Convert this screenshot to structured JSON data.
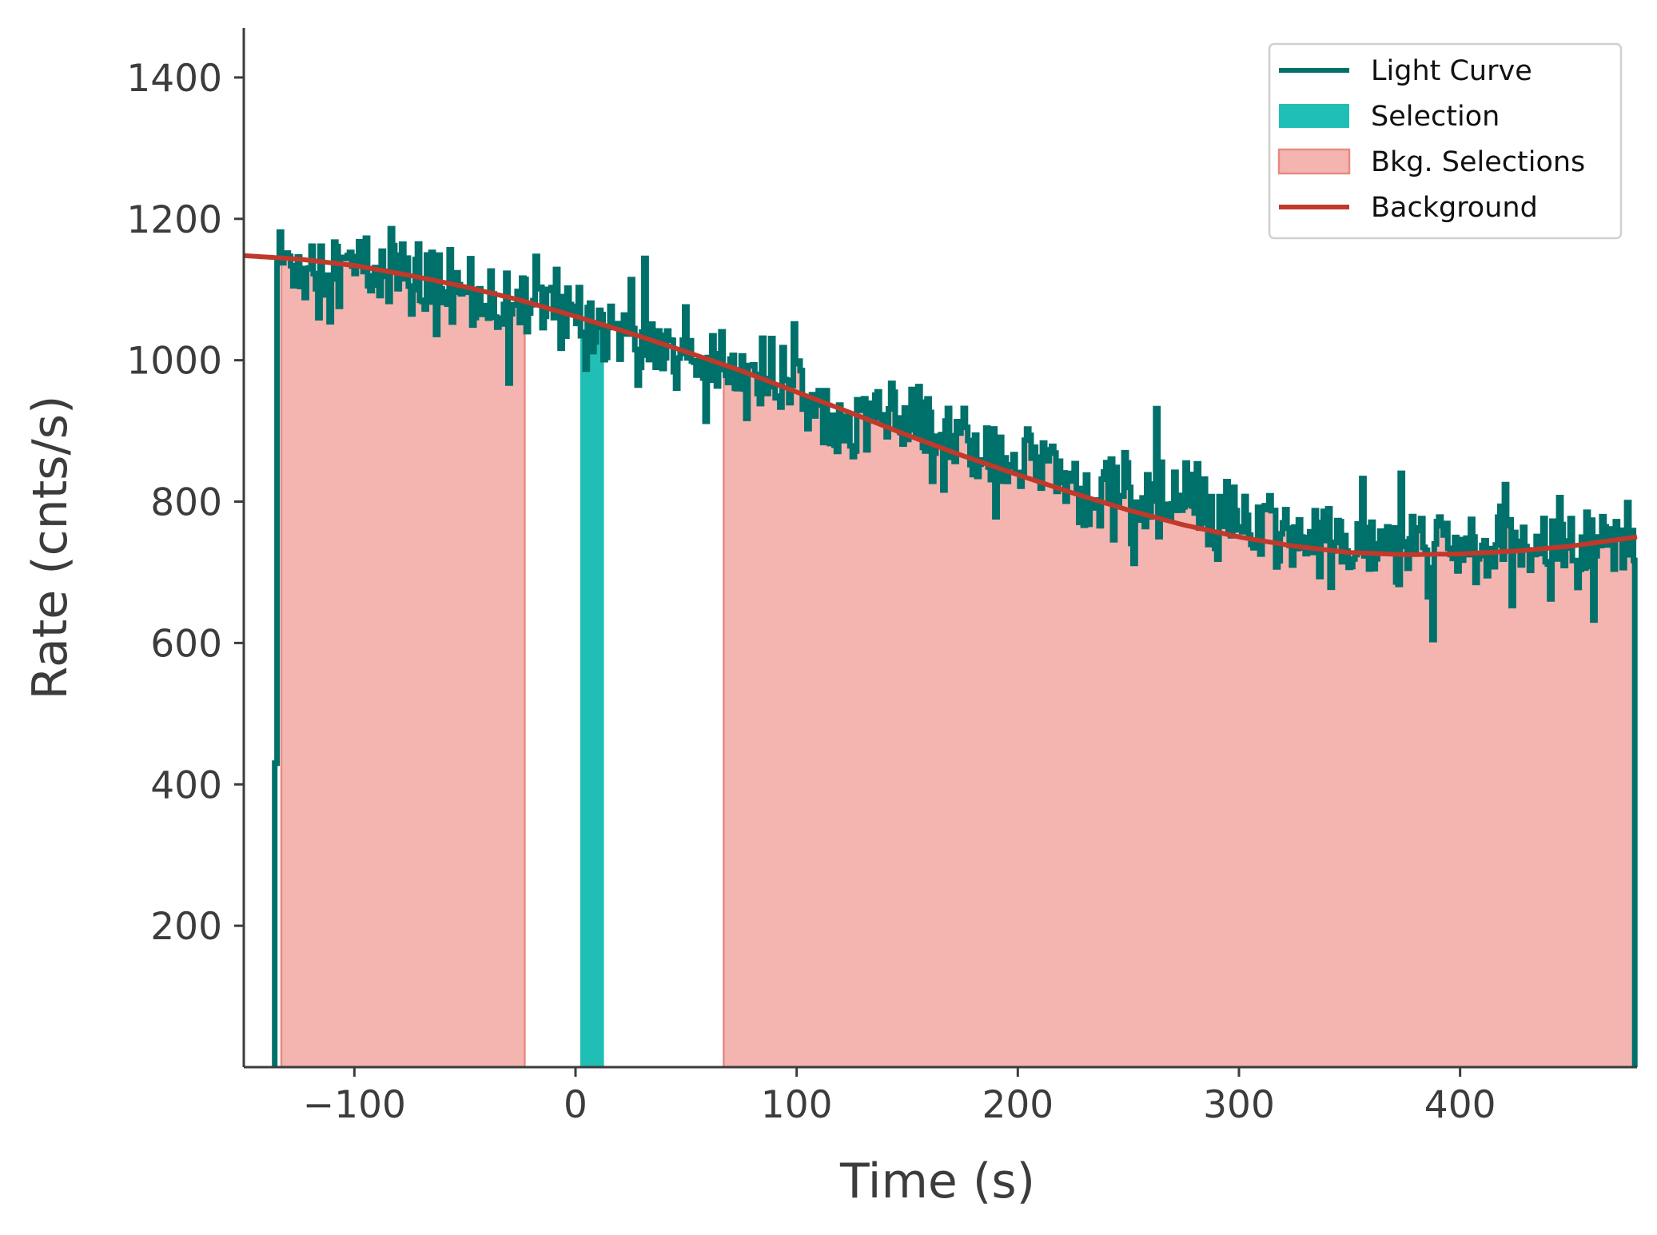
{
  "chart_data": {
    "type": "line",
    "title": "",
    "xlabel": "Time (s)",
    "ylabel": "Rate (cnts/s)",
    "xlim": [
      -150,
      480
    ],
    "ylim": [
      0,
      1470
    ],
    "x_ticks": [
      -100,
      0,
      100,
      200,
      300,
      400
    ],
    "x_tick_labels": [
      "−100",
      "0",
      "100",
      "200",
      "300",
      "400"
    ],
    "y_ticks": [
      200,
      400,
      600,
      800,
      1000,
      1200,
      1400
    ],
    "y_tick_labels": [
      "200",
      "400",
      "600",
      "800",
      "1000",
      "1200",
      "1400"
    ],
    "grid": false,
    "legend_position": "top-right",
    "series": [
      {
        "name": "Light Curve",
        "kind": "step",
        "color": "#00706a",
        "bin_width_s": 1.024,
        "start_s": -136,
        "end_s": 479,
        "start_value": 430,
        "mean_trend": {
          "x": [
            -136,
            -100,
            -50,
            0,
            50,
            100,
            150,
            200,
            250,
            300,
            350,
            400,
            450,
            479
          ],
          "y": [
            1140,
            1130,
            1095,
            1065,
            1010,
            960,
            905,
            855,
            805,
            765,
            735,
            730,
            735,
            745
          ]
        },
        "noise_std": 30
      },
      {
        "name": "Selection",
        "kind": "span",
        "color": "#20bfb5",
        "x_range": [
          2.5,
          12.5
        ]
      },
      {
        "name": "Bkg. Selections",
        "kind": "fill",
        "color": "#f4b5b0",
        "edge_color": "#e88a84",
        "x_ranges": [
          [
            -133,
            -23
          ],
          [
            67,
            479
          ]
        ]
      },
      {
        "name": "Background",
        "kind": "line",
        "color": "#c0392b",
        "x": [
          -150,
          -125,
          -100,
          -75,
          -50,
          -25,
          0,
          25,
          50,
          75,
          100,
          125,
          150,
          175,
          200,
          225,
          250,
          275,
          300,
          325,
          350,
          375,
          400,
          425,
          450,
          480
        ],
        "y": [
          1148,
          1143,
          1134,
          1120,
          1104,
          1085,
          1062,
          1038,
          1012,
          985,
          955,
          925,
          894,
          865,
          838,
          812,
          788,
          767,
          750,
          737,
          728,
          725,
          726,
          730,
          737,
          750
        ]
      }
    ]
  },
  "legend": {
    "items": [
      {
        "label": "Light Curve",
        "color": "#00706a",
        "kind": "line"
      },
      {
        "label": "Selection",
        "color": "#20bfb5",
        "kind": "patch"
      },
      {
        "label": "Bkg. Selections",
        "color": "#f4b5b0",
        "kind": "patch"
      },
      {
        "label": "Background",
        "color": "#c0392b",
        "kind": "line"
      }
    ]
  }
}
